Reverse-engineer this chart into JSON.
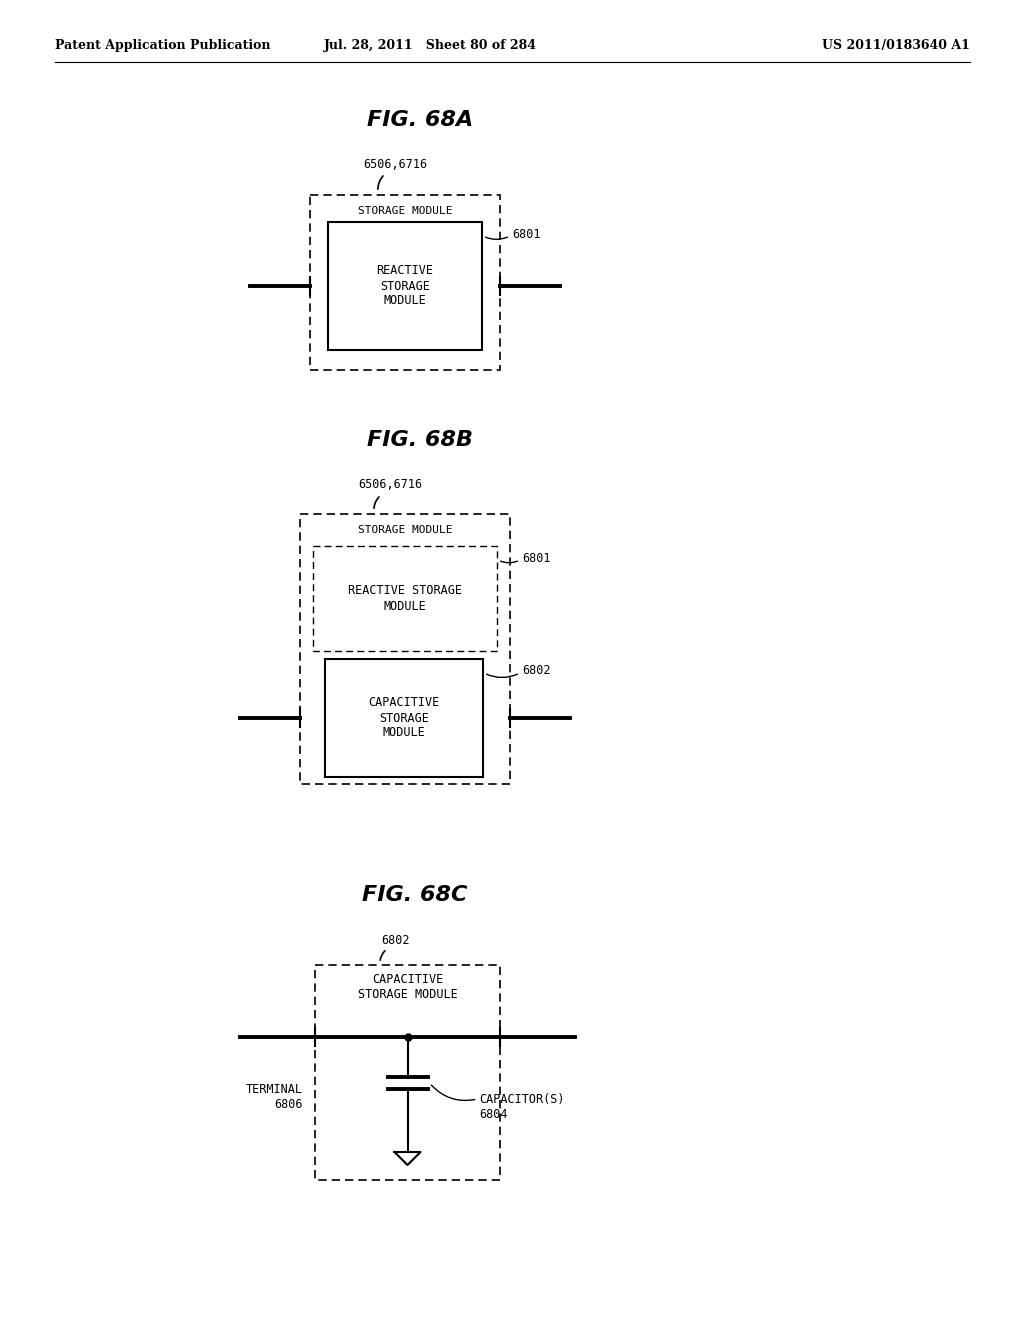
{
  "header_left": "Patent Application Publication",
  "header_mid": "Jul. 28, 2011   Sheet 80 of 284",
  "header_right": "US 2011/0183640 A1",
  "bg_color": "#ffffff",
  "fig_a_title": "FIG. 68A",
  "fig_b_title": "FIG. 68B",
  "fig_c_title": "FIG. 68C",
  "label_6506_6716_a": "6506,6716",
  "label_6506_6716_b": "6506,6716",
  "label_6801_a": "6801",
  "label_6801_b": "6801",
  "label_6802_b": "6802",
  "label_6802_c": "6802",
  "label_6804": "CAPACITOR(S)\n6804",
  "label_6806": "TERMINAL\n6806",
  "text_storage_module": "STORAGE MODULE",
  "text_reactive_a": "REACTIVE\nSTORAGE\nMODULE",
  "text_reactive_b": "REACTIVE STORAGE\nMODULE",
  "text_capacitive_b": "CAPACITIVE\nSTORAGE\nMODULE",
  "text_capacitive_c": "CAPACITIVE\nSTORAGE MODULE"
}
